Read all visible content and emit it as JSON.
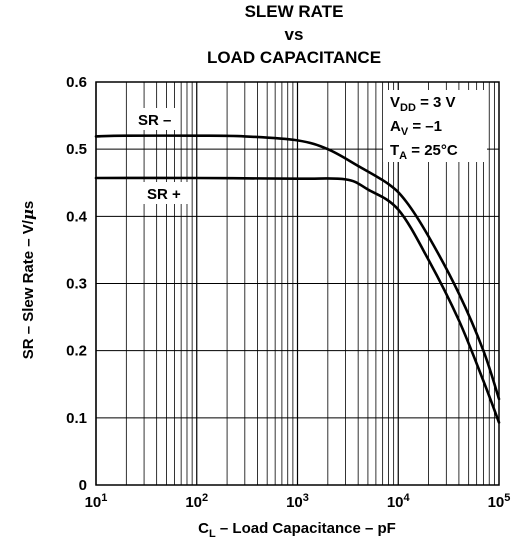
{
  "chart_data": {
    "type": "line",
    "title_lines": [
      "SLEW RATE",
      "vs",
      "LOAD CAPACITANCE"
    ],
    "xlabel": {
      "main": "C",
      "sub": "L",
      "rest": " – Load Capacitance – pF"
    },
    "ylabel": {
      "text": "SR – Slew Rate – V/",
      "mu": "μ",
      "unit_tail": "s"
    },
    "x_scale": "log",
    "xlim": [
      10,
      100000
    ],
    "ylim": [
      0,
      0.6
    ],
    "y_ticks": [
      "0",
      "0.1",
      "0.2",
      "0.3",
      "0.4",
      "0.5",
      "0.6"
    ],
    "x_ticks": [
      {
        "base": "10",
        "exp": "1"
      },
      {
        "base": "10",
        "exp": "2"
      },
      {
        "base": "10",
        "exp": "3"
      },
      {
        "base": "10",
        "exp": "4"
      },
      {
        "base": "10",
        "exp": "5"
      }
    ],
    "grid": true,
    "series": [
      {
        "name": "SR –",
        "points": [
          [
            10,
            0.519
          ],
          [
            20,
            0.52
          ],
          [
            100,
            0.52
          ],
          [
            300,
            0.519
          ],
          [
            1000,
            0.513
          ],
          [
            2000,
            0.5
          ],
          [
            4000,
            0.475
          ],
          [
            8000,
            0.448
          ],
          [
            12000,
            0.422
          ],
          [
            20000,
            0.37
          ],
          [
            40000,
            0.285
          ],
          [
            70000,
            0.2
          ],
          [
            100000,
            0.128
          ]
        ]
      },
      {
        "name": "SR +",
        "points": [
          [
            10,
            0.457
          ],
          [
            100,
            0.457
          ],
          [
            1000,
            0.456
          ],
          [
            3000,
            0.455
          ],
          [
            5000,
            0.44
          ],
          [
            10000,
            0.41
          ],
          [
            20000,
            0.335
          ],
          [
            40000,
            0.245
          ],
          [
            70000,
            0.155
          ],
          [
            100000,
            0.093
          ]
        ]
      }
    ],
    "conditions": [
      {
        "main": "V",
        "sub": "DD",
        "rest": " = 3 V"
      },
      {
        "main": "A",
        "sub": "V",
        "rest": " = –1"
      },
      {
        "main": "T",
        "sub": "A",
        "rest": " = 25°C"
      }
    ]
  }
}
